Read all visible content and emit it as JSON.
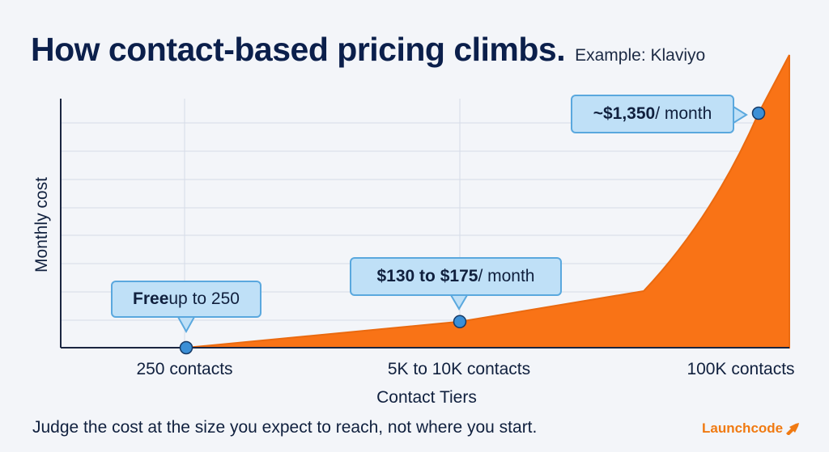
{
  "title": "How contact-based pricing climbs.",
  "subtitle": "Example: Klaviyo",
  "footer_note": "Judge the cost at the size you expect to reach, not where you start.",
  "brand": "Launchcode",
  "colors": {
    "area_fill": "#f97316",
    "area_stroke": "#ea6a10",
    "point_fill": "#3b8fd6",
    "callout_bg": "#bfe0f7",
    "grid": "#d6dce8",
    "axis": "#1a2540"
  },
  "callouts": [
    {
      "bold": "Free",
      "rest": " up to 250"
    },
    {
      "bold": "$130 to $175",
      "rest": " / month"
    },
    {
      "bold": "~$1,350",
      "rest": " / month"
    }
  ],
  "chart_data": {
    "type": "area",
    "title": "How contact-based pricing climbs.",
    "subtitle": "Example: Klaviyo",
    "xlabel": "Contact Tiers",
    "ylabel": "Monthly cost",
    "categories": [
      "250 contacts",
      "5K to 10K contacts",
      "100K contacts"
    ],
    "points": [
      {
        "tier": "250 contacts",
        "value": 0
      },
      {
        "tier": "5K to 10K contacts",
        "value": 150
      },
      {
        "tier": "100K contacts",
        "value": 1350
      }
    ],
    "grid": true,
    "legend": "none"
  }
}
